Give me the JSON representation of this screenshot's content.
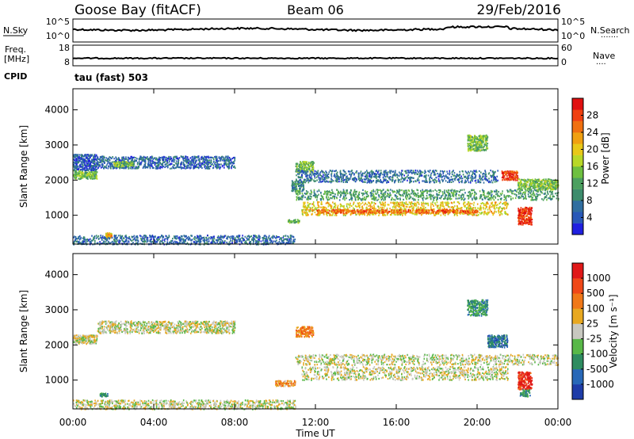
{
  "header": {
    "station": "Goose Bay (fitACF)",
    "beam": "Beam 06",
    "date": "29/Feb/2016"
  },
  "noise_panel": {
    "left_label": "N.Sky",
    "left_ticks": [
      "10^5",
      "10^0"
    ],
    "right_label": "N.Search",
    "right_ticks": [
      "10^5",
      "10^0"
    ],
    "right_legend": "·······"
  },
  "freq_panel": {
    "left_label_1": "Freq.",
    "left_label_2": "[MHz]",
    "left_ticks": [
      "18",
      "8"
    ],
    "right_label": "Nave",
    "right_ticks": [
      "60",
      "0"
    ],
    "right_legend": "····",
    "cpid_label": "CPID",
    "cpid_value": "tau (fast) 503"
  },
  "x_axis": {
    "label": "Time UT",
    "ticks": [
      "00:00",
      "04:00",
      "08:00",
      "12:00",
      "16:00",
      "20:00",
      "00:00"
    ]
  },
  "chart_data": [
    {
      "type": "heatmap",
      "name": "power",
      "ylabel": "Slant Range [km]",
      "yticks": [
        1000,
        2000,
        3000,
        4000
      ],
      "ylim": [
        180,
        4600
      ],
      "xlim_hours": [
        0,
        24
      ],
      "colorbar": {
        "label": "Power [dB]",
        "ticks": [
          "4",
          "8",
          "12",
          "16",
          "20",
          "24",
          "28"
        ],
        "colors": [
          "#2020e0",
          "#2858b8",
          "#306ea0",
          "#3c8c6c",
          "#4ca060",
          "#6ec040",
          "#b8d828",
          "#e8c818",
          "#f0a010",
          "#f07010",
          "#f04010",
          "#e01010"
        ]
      },
      "regions": [
        {
          "x": [
            0,
            1.2
          ],
          "y": [
            2050,
            2300
          ],
          "level": 0.45
        },
        {
          "x": [
            0,
            1.2
          ],
          "y": [
            2300,
            2750
          ],
          "level": 0.15
        },
        {
          "x": [
            1.2,
            8.0
          ],
          "y": [
            2350,
            2700
          ],
          "level": 0.18
        },
        {
          "x": [
            2.0,
            3.0
          ],
          "y": [
            2400,
            2550
          ],
          "level": 0.45
        },
        {
          "x": [
            10.6,
            11.2
          ],
          "y": [
            800,
            900
          ],
          "level": 0.4
        },
        {
          "x": [
            10.8,
            11.4
          ],
          "y": [
            1700,
            2000
          ],
          "level": 0.3
        },
        {
          "x": [
            11.0,
            11.9
          ],
          "y": [
            2250,
            2550
          ],
          "level": 0.45
        },
        {
          "x": [
            11.0,
            21.0
          ],
          "y": [
            1950,
            2300
          ],
          "level": 0.2
        },
        {
          "x": [
            11.0,
            24.0
          ],
          "y": [
            1450,
            1750
          ],
          "level": 0.35
        },
        {
          "x": [
            11.3,
            21.5
          ],
          "y": [
            1020,
            1400
          ],
          "level": 0.62
        },
        {
          "x": [
            12.0,
            20.0
          ],
          "y": [
            1080,
            1180
          ],
          "level": 0.8
        },
        {
          "x": [
            19.5,
            20.5
          ],
          "y": [
            2850,
            3300
          ],
          "level": 0.45
        },
        {
          "x": [
            21.2,
            22.0
          ],
          "y": [
            2020,
            2280
          ],
          "level": 0.88
        },
        {
          "x": [
            22.0,
            22.7
          ],
          "y": [
            750,
            1250
          ],
          "level": 0.92
        },
        {
          "x": [
            22.0,
            24.0
          ],
          "y": [
            1750,
            2050
          ],
          "level": 0.45
        },
        {
          "x": [
            1.6,
            1.9
          ],
          "y": [
            380,
            520
          ],
          "level": 0.7
        },
        {
          "x": [
            0,
            11.0
          ],
          "y": [
            190,
            450
          ],
          "level": 0.2
        }
      ]
    },
    {
      "type": "heatmap",
      "name": "velocity",
      "ylabel": "Slant Range [km]",
      "yticks": [
        1000,
        2000,
        3000,
        4000
      ],
      "ylim": [
        180,
        4600
      ],
      "xlim_hours": [
        0,
        24
      ],
      "colorbar": {
        "label": "Velocity [m s⁻¹]",
        "ticks": [
          "1000",
          "500",
          "100",
          "25",
          "-25",
          "-100",
          "-500",
          "-1000"
        ],
        "colors": [
          "#1e3ca8",
          "#2868b8",
          "#2e8c60",
          "#58b848",
          "#c8c8c0",
          "#e8a820",
          "#f07818",
          "#f04818",
          "#e01818"
        ]
      },
      "regions": [
        {
          "x": [
            0,
            1.2
          ],
          "y": [
            2050,
            2300
          ],
          "level": 0.5
        },
        {
          "x": [
            1.2,
            8.0
          ],
          "y": [
            2350,
            2700
          ],
          "level": 0.5
        },
        {
          "x": [
            11.0,
            11.9
          ],
          "y": [
            2250,
            2550
          ],
          "level": 0.72
        },
        {
          "x": [
            11.0,
            24.0
          ],
          "y": [
            1450,
            1750
          ],
          "level": 0.5
        },
        {
          "x": [
            11.3,
            21.5
          ],
          "y": [
            1020,
            1400
          ],
          "level": 0.5
        },
        {
          "x": [
            19.5,
            20.5
          ],
          "y": [
            2850,
            3300
          ],
          "level": 0.3
        },
        {
          "x": [
            20.5,
            21.5
          ],
          "y": [
            1950,
            2300
          ],
          "level": 0.2
        },
        {
          "x": [
            22.0,
            22.7
          ],
          "y": [
            750,
            1250
          ],
          "level": 0.9
        },
        {
          "x": [
            22.1,
            22.6
          ],
          "y": [
            550,
            750
          ],
          "level": 0.3
        },
        {
          "x": [
            10.0,
            11.0
          ],
          "y": [
            850,
            1000
          ],
          "level": 0.66
        },
        {
          "x": [
            1.3,
            1.7
          ],
          "y": [
            540,
            650
          ],
          "level": 0.3
        },
        {
          "x": [
            0,
            11.0
          ],
          "y": [
            190,
            450
          ],
          "level": 0.5
        }
      ]
    }
  ]
}
